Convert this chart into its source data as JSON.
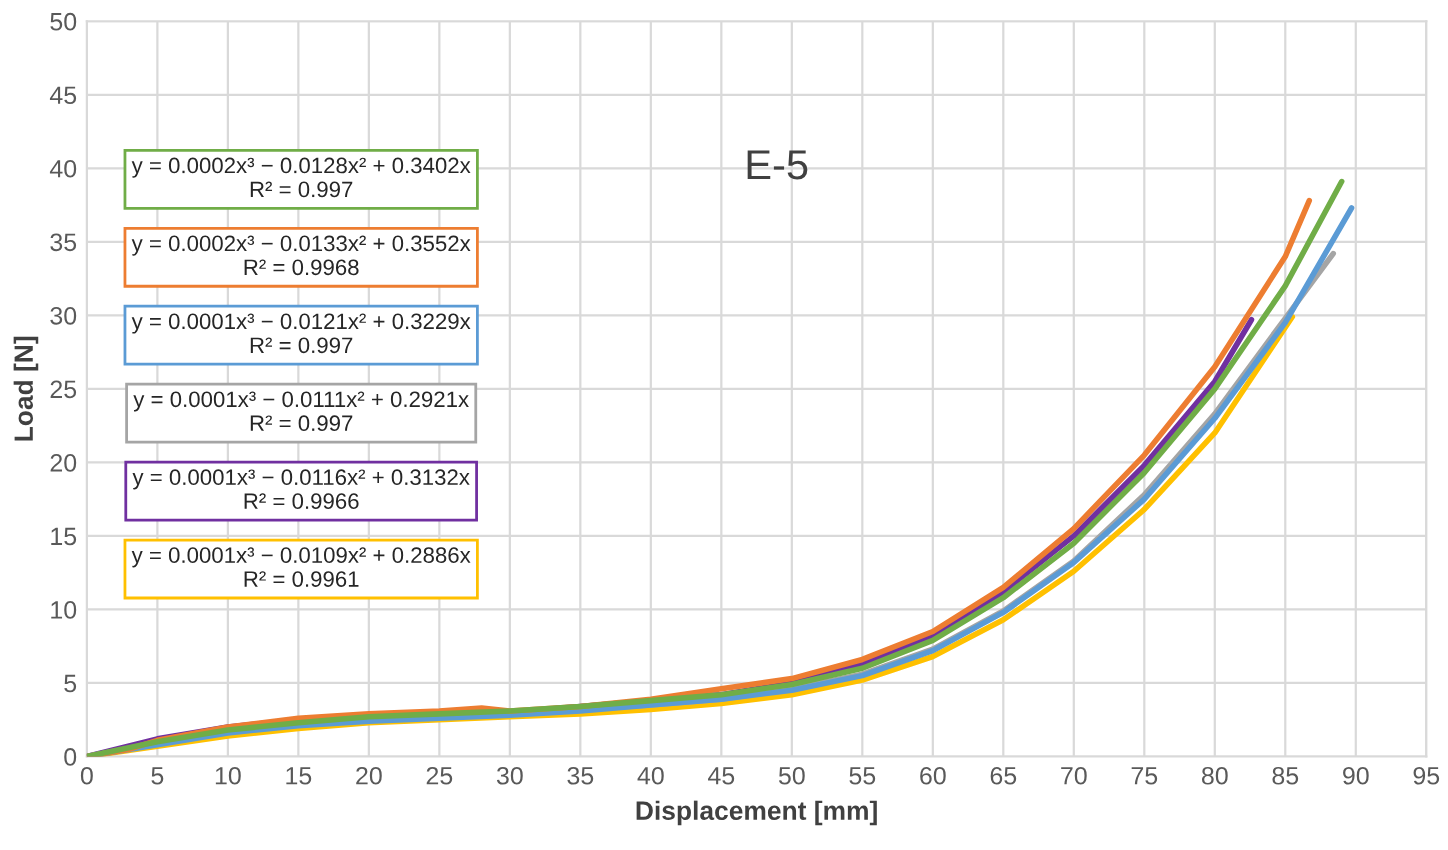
{
  "chart_data": {
    "type": "line",
    "title": "E-5",
    "xlabel": "Displacement [mm]",
    "ylabel": "Load [N]",
    "xlim": [
      0,
      95
    ],
    "ylim": [
      0,
      50
    ],
    "xticks": [
      0,
      5,
      10,
      15,
      20,
      25,
      30,
      35,
      40,
      45,
      50,
      55,
      60,
      65,
      70,
      75,
      80,
      85,
      90,
      95
    ],
    "yticks": [
      0,
      5,
      10,
      15,
      20,
      25,
      30,
      35,
      40,
      45,
      50
    ],
    "grid": true,
    "marker": "none",
    "line_style": "solid",
    "annotations": [
      "y = 0.0002x³ − 0.0128x² + 0.3402x\nR² = 0.997",
      "y = 0.0002x³ − 0.0133x² + 0.3552x\nR² = 0.9968",
      "y = 0.0001x³ − 0.0121x² + 0.3229x\nR² = 0.997",
      "y = 0.0001x³ − 0.0111x² + 0.2921x\nR² = 0.997",
      "y = 0.0001x³ − 0.0116x² + 0.3132x\nR² = 0.9966",
      "y = 0.0001x³ − 0.0109x² + 0.2886x\nR² = 0.9961"
    ],
    "series": [
      {
        "color": "#70ad47",
        "x": [
          0,
          5,
          10,
          15,
          20,
          25,
          30,
          35,
          40,
          45,
          50,
          55,
          60,
          65,
          70,
          75,
          80,
          85,
          89
        ],
        "values": [
          0,
          1.0,
          1.8,
          2.3,
          2.7,
          2.9,
          3.1,
          3.4,
          3.8,
          4.2,
          4.9,
          6.0,
          7.9,
          10.8,
          14.5,
          19.3,
          25,
          32,
          39.1
        ]
      },
      {
        "color": "#ed7d31",
        "x": [
          0,
          3,
          5,
          10,
          15,
          20,
          25,
          28,
          30,
          35,
          40,
          45,
          50,
          55,
          60,
          65,
          70,
          75,
          80,
          85,
          86.7
        ],
        "values": [
          0,
          0.5,
          1.1,
          2.0,
          2.6,
          2.9,
          3.1,
          3.3,
          3.1,
          3.4,
          3.9,
          4.6,
          5.3,
          6.6,
          8.5,
          11.5,
          15.5,
          20.5,
          26.5,
          34,
          37.8
        ]
      },
      {
        "color": "#5b9bd5",
        "x": [
          0,
          5,
          10,
          15,
          20,
          25,
          30,
          35,
          40,
          45,
          50,
          55,
          60,
          65,
          70,
          75,
          80,
          85,
          89.7
        ],
        "values": [
          0,
          0.8,
          1.6,
          2.1,
          2.4,
          2.6,
          2.8,
          3.1,
          3.5,
          3.9,
          4.5,
          5.5,
          7.2,
          9.8,
          13.2,
          17.5,
          23,
          29.5,
          37.3
        ]
      },
      {
        "color": "#a5a5a5",
        "x": [
          0,
          5,
          10,
          15,
          20,
          25,
          30,
          35,
          40,
          45,
          50,
          55,
          60,
          65,
          70,
          75,
          80,
          85,
          88.4
        ],
        "values": [
          0,
          0.9,
          1.7,
          2.2,
          2.5,
          2.7,
          2.9,
          3.2,
          3.5,
          3.9,
          4.6,
          5.6,
          7.3,
          9.9,
          13.3,
          17.8,
          23.3,
          29.8,
          34.2
        ]
      },
      {
        "color": "#7030a0",
        "x": [
          0,
          5,
          10,
          15,
          20,
          25,
          30,
          35,
          40,
          43,
          45,
          50,
          55,
          60,
          65,
          70,
          75,
          80,
          82.6
        ],
        "values": [
          0,
          1.2,
          2.0,
          2.5,
          2.6,
          2.8,
          3.0,
          3.4,
          3.8,
          4.1,
          4.2,
          5.0,
          6.3,
          8.2,
          11.2,
          15.0,
          19.8,
          25.5,
          29.7
        ]
      },
      {
        "color": "#ffc000",
        "x": [
          0,
          5,
          10,
          15,
          20,
          25,
          30,
          35,
          40,
          45,
          50,
          55,
          60,
          65,
          70,
          75,
          80,
          85.5
        ],
        "values": [
          0,
          0.7,
          1.4,
          1.9,
          2.3,
          2.5,
          2.7,
          2.9,
          3.2,
          3.6,
          4.2,
          5.2,
          6.8,
          9.3,
          12.6,
          16.8,
          22,
          29.9
        ]
      }
    ]
  }
}
